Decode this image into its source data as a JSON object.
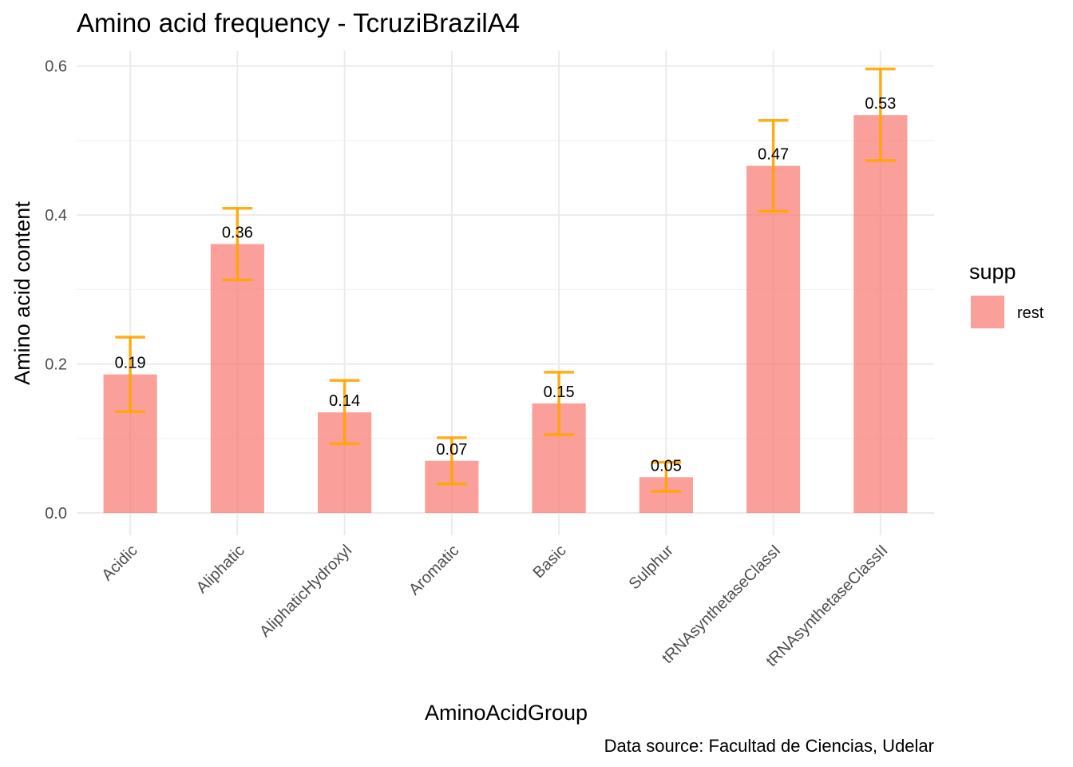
{
  "chart_data": {
    "type": "bar",
    "title": "Amino acid frequency - TcruziBrazilA4",
    "xlabel": "AminoAcidGroup",
    "ylabel": "Amino acid content",
    "caption": "Data source: Facultad de Ciencias, Udelar",
    "categories": [
      "Acidic",
      "Aliphatic",
      "AliphaticHydroxyl",
      "Aromatic",
      "Basic",
      "Sulphur",
      "tRNAsynthetaseClassI",
      "tRNAsynthetaseClassII"
    ],
    "values": [
      0.186,
      0.361,
      0.135,
      0.07,
      0.147,
      0.048,
      0.466,
      0.534
    ],
    "error_low": [
      0.136,
      0.313,
      0.093,
      0.039,
      0.105,
      0.029,
      0.405,
      0.473
    ],
    "error_high": [
      0.236,
      0.409,
      0.178,
      0.101,
      0.189,
      0.068,
      0.527,
      0.596
    ],
    "data_labels": [
      "0.19",
      "0.36",
      "0.14",
      "0.07",
      "0.15",
      "0.05",
      "0.47",
      "0.53"
    ],
    "ylim": [
      -0.03,
      0.62
    ],
    "yticks": [
      0.0,
      0.2,
      0.4,
      0.6
    ],
    "ytick_labels": [
      "0.0",
      "0.2",
      "0.4",
      "0.6"
    ],
    "grid": true,
    "legend": {
      "title": "supp",
      "entries": [
        "rest"
      ],
      "placement": "right"
    },
    "colors": {
      "bar": "#f8766d",
      "bar_opacity": 0.7,
      "errorbar": "#ffa500"
    }
  }
}
